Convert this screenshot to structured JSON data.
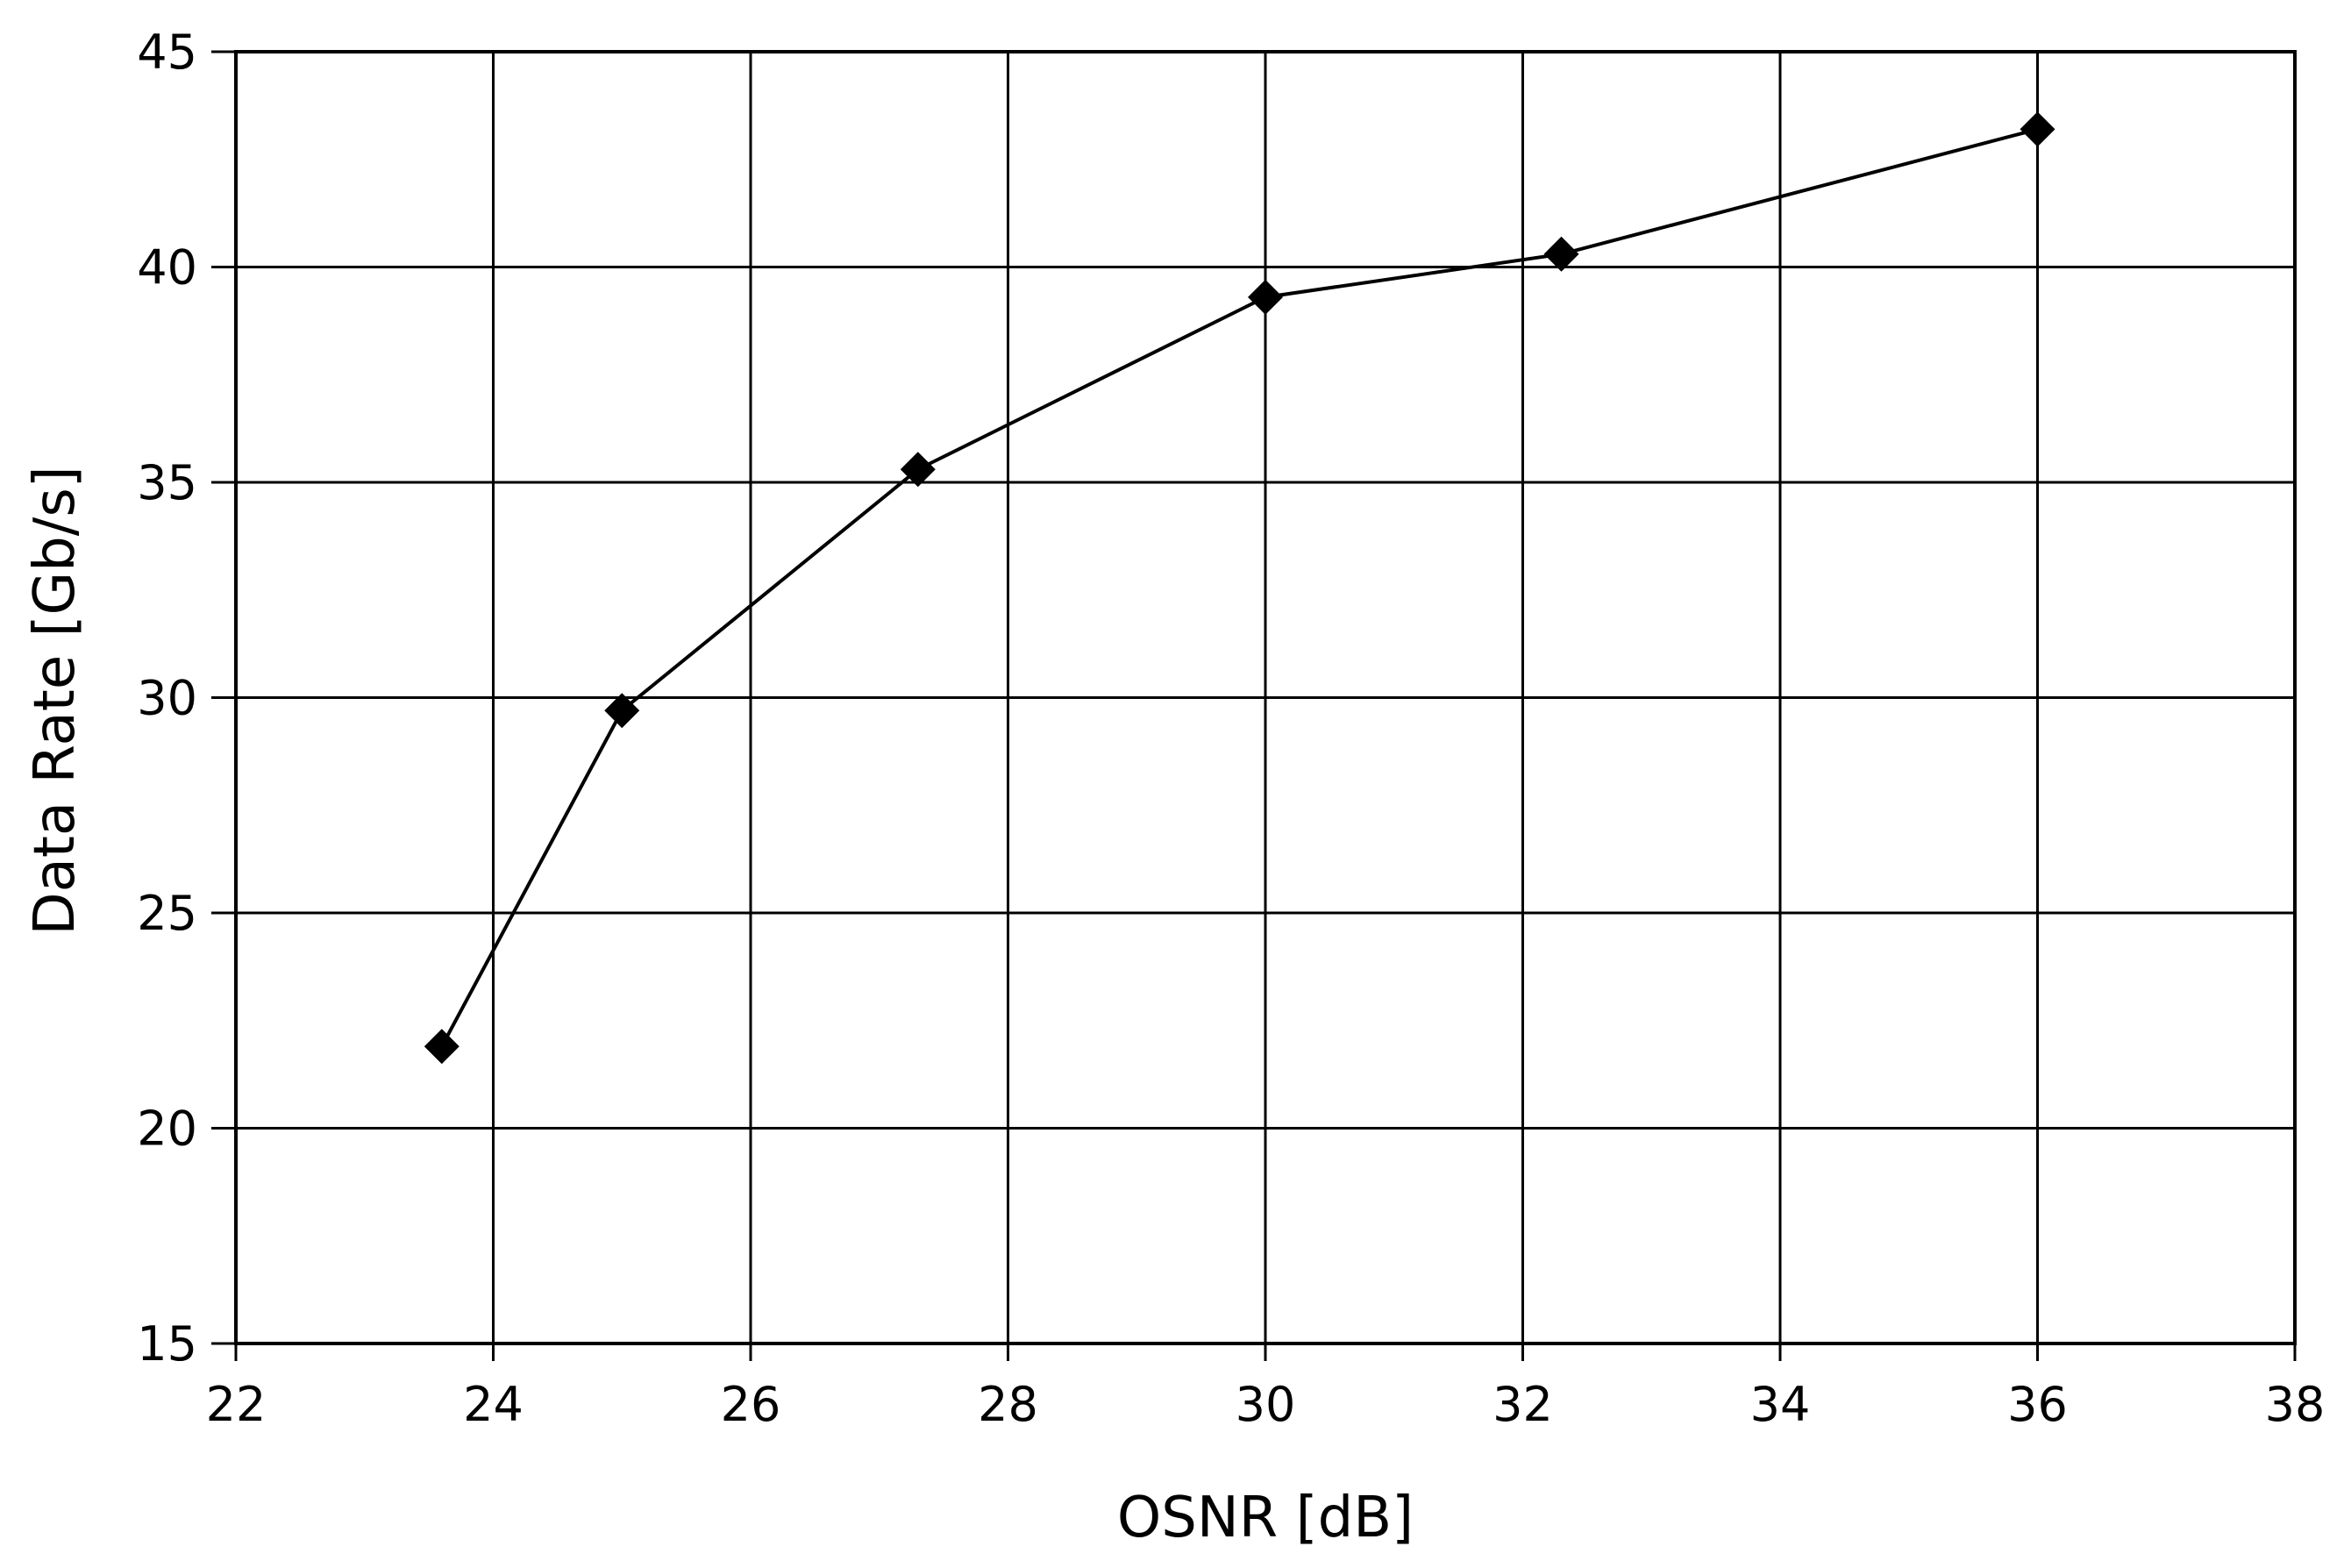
{
  "chart_data": {
    "type": "line",
    "xlabel": "OSNR [dB]",
    "ylabel": "Data Rate [Gb/s]",
    "xlim": [
      22,
      38
    ],
    "ylim": [
      15,
      45
    ],
    "xticks": [
      22,
      24,
      26,
      28,
      30,
      32,
      34,
      36,
      38
    ],
    "yticks": [
      15,
      20,
      25,
      30,
      35,
      40,
      45
    ],
    "xtick_labels": [
      "22",
      "24",
      "26",
      "28",
      "30",
      "32",
      "34",
      "36",
      "38"
    ],
    "ytick_labels": [
      "15",
      "20",
      "25",
      "30",
      "35",
      "40",
      "45"
    ],
    "grid": true,
    "legend": false,
    "marker": "diamond",
    "line_color": "#000000",
    "series": [
      {
        "x": [
          23.6,
          25.0,
          27.3,
          30.0,
          32.3,
          36.0
        ],
        "y": [
          21.9,
          29.7,
          35.3,
          39.3,
          40.3,
          43.2
        ]
      }
    ]
  }
}
